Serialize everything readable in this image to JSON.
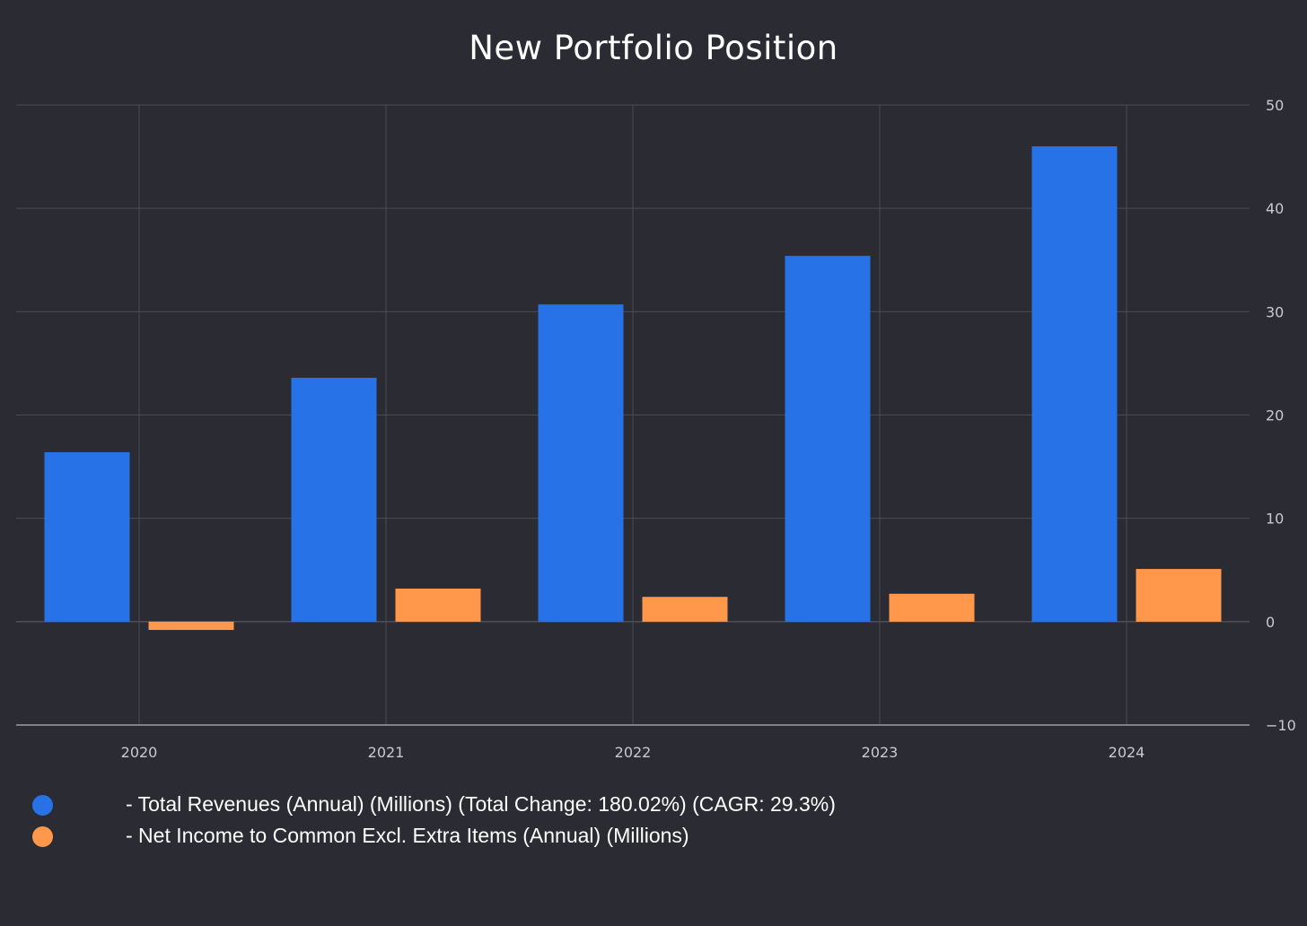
{
  "chart_data": {
    "type": "bar",
    "title": "New Portfolio Position",
    "categories": [
      "2020",
      "2021",
      "2022",
      "2023",
      "2024"
    ],
    "series": [
      {
        "name": "- Total Revenues (Annual) (Millions) (Total Change: 180.02%) (CAGR: 29.3%)",
        "color": "#2872e8",
        "values": [
          16.4,
          23.6,
          30.7,
          35.4,
          46.0
        ]
      },
      {
        "name": "- Net Income to Common Excl. Extra Items (Annual) (Millions)",
        "color": "#ff984a",
        "values": [
          -0.8,
          3.2,
          2.4,
          2.7,
          5.1
        ]
      }
    ],
    "ylim": [
      -10,
      50
    ],
    "yticks": [
      50,
      40,
      30,
      20,
      10,
      0,
      -10
    ],
    "y_axis_position": "right",
    "grid": true,
    "legend_position": "bottom-left"
  },
  "colors": {
    "background": "#2a2b33",
    "grid": "#4a4c55",
    "axis": "#9a9ba3",
    "text": "#ffffff"
  }
}
